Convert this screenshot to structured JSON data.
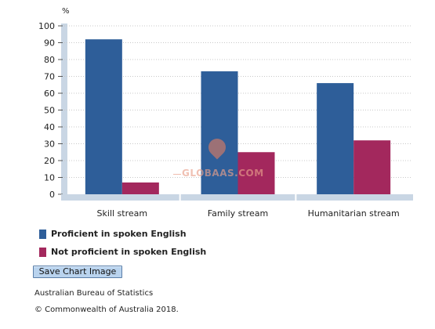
{
  "chart_data": {
    "type": "bar",
    "ylabel": "%",
    "ylim": [
      0,
      100
    ],
    "yticks": [
      0,
      10,
      20,
      30,
      40,
      50,
      60,
      70,
      80,
      90,
      100
    ],
    "grid": true,
    "categories": [
      "Skill stream",
      "Family stream",
      "Humanitarian stream"
    ],
    "series": [
      {
        "name": "Proficient in spoken English",
        "color": "#2e5e99",
        "values": [
          92,
          73,
          66
        ]
      },
      {
        "name": "Not proficient in spoken English",
        "color": "#a3285d",
        "values": [
          7,
          25,
          32
        ]
      }
    ],
    "legend_position": "bottom-left"
  },
  "legend": [
    {
      "label": "Proficient in spoken English",
      "color": "#2e5e99"
    },
    {
      "label": "Not proficient in spoken English",
      "color": "#a3285d"
    }
  ],
  "buttons": {
    "save_chart": "Save Chart Image"
  },
  "footer": {
    "source": "Australian Bureau of Statistics",
    "copyright": "© Commonwealth of Australia 2018."
  },
  "watermark": {
    "text": "GLOBAAS.COM"
  }
}
